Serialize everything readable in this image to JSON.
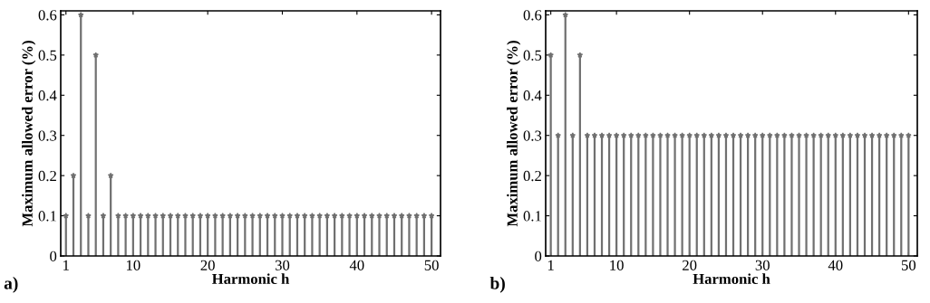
{
  "chart_data": [
    {
      "type": "lollipop",
      "xlabel": "Harmonic h",
      "ylabel": "Maximum allowed error (%)",
      "annotations": [
        "a)"
      ],
      "x": [
        1,
        2,
        3,
        4,
        5,
        6,
        7,
        8,
        9,
        10,
        11,
        12,
        13,
        14,
        15,
        16,
        17,
        18,
        19,
        20,
        21,
        22,
        23,
        24,
        25,
        26,
        27,
        28,
        29,
        30,
        31,
        32,
        33,
        34,
        35,
        36,
        37,
        38,
        39,
        40,
        41,
        42,
        43,
        44,
        45,
        46,
        47,
        48,
        49,
        50
      ],
      "values": [
        0.1,
        0.2,
        0.6,
        0.1,
        0.5,
        0.1,
        0.2,
        0.1,
        0.1,
        0.1,
        0.1,
        0.1,
        0.1,
        0.1,
        0.1,
        0.1,
        0.1,
        0.1,
        0.1,
        0.1,
        0.1,
        0.1,
        0.1,
        0.1,
        0.1,
        0.1,
        0.1,
        0.1,
        0.1,
        0.1,
        0.1,
        0.1,
        0.1,
        0.1,
        0.1,
        0.1,
        0.1,
        0.1,
        0.1,
        0.1,
        0.1,
        0.1,
        0.1,
        0.1,
        0.1,
        0.1,
        0.1,
        0.1,
        0.1,
        0.1
      ],
      "color": "#707070",
      "marker": "star",
      "xlim": [
        0.3,
        51.2
      ],
      "ylim": [
        0,
        0.61
      ],
      "xticks": [
        1,
        10,
        20,
        30,
        40,
        50
      ],
      "yticks": [
        0,
        0.1,
        0.2,
        0.3,
        0.4,
        0.5,
        0.6
      ]
    },
    {
      "type": "lollipop",
      "xlabel": "Harmonic h",
      "ylabel": "Maximum allowed error (%)",
      "annotations": [
        "b)"
      ],
      "x": [
        1,
        2,
        3,
        4,
        5,
        6,
        7,
        8,
        9,
        10,
        11,
        12,
        13,
        14,
        15,
        16,
        17,
        18,
        19,
        20,
        21,
        22,
        23,
        24,
        25,
        26,
        27,
        28,
        29,
        30,
        31,
        32,
        33,
        34,
        35,
        36,
        37,
        38,
        39,
        40,
        41,
        42,
        43,
        44,
        45,
        46,
        47,
        48,
        49,
        50
      ],
      "values": [
        0.5,
        0.3,
        0.6,
        0.3,
        0.5,
        0.3,
        0.3,
        0.3,
        0.3,
        0.3,
        0.3,
        0.3,
        0.3,
        0.3,
        0.3,
        0.3,
        0.3,
        0.3,
        0.3,
        0.3,
        0.3,
        0.3,
        0.3,
        0.3,
        0.3,
        0.3,
        0.3,
        0.3,
        0.3,
        0.3,
        0.3,
        0.3,
        0.3,
        0.3,
        0.3,
        0.3,
        0.3,
        0.3,
        0.3,
        0.3,
        0.3,
        0.3,
        0.3,
        0.3,
        0.3,
        0.3,
        0.3,
        0.3,
        0.3,
        0.3
      ],
      "color": "#707070",
      "marker": "star",
      "xlim": [
        0.3,
        51.2
      ],
      "ylim": [
        0,
        0.61
      ],
      "xticks": [
        1,
        10,
        20,
        30,
        40,
        50
      ],
      "yticks": [
        0,
        0.1,
        0.2,
        0.3,
        0.4,
        0.5,
        0.6
      ]
    }
  ]
}
